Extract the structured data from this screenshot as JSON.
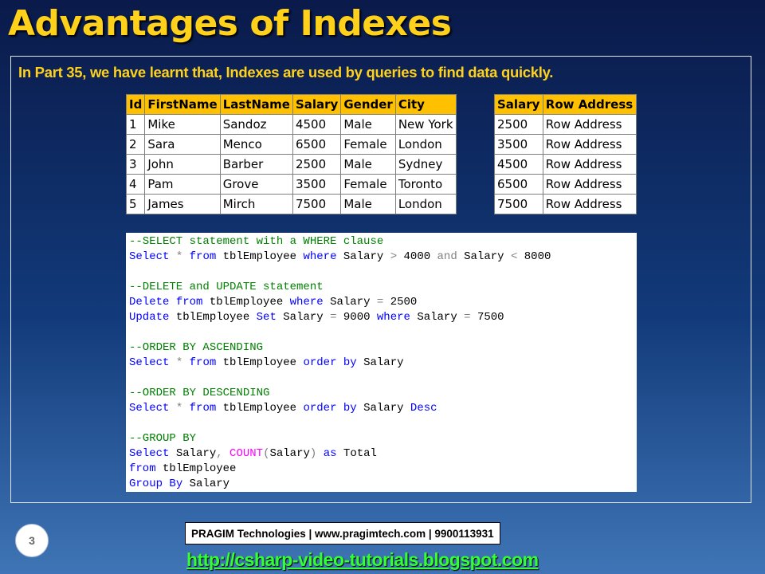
{
  "slide": {
    "title": "Advantages of Indexes",
    "intro": "In Part 35, we have learnt that, Indexes are used by queries to find data quickly.",
    "number": "3"
  },
  "employee_table": {
    "headers": [
      "Id",
      "FirstName",
      "LastName",
      "Salary",
      "Gender",
      "City"
    ],
    "rows": [
      [
        "1",
        "Mike",
        "Sandoz",
        "4500",
        "Male",
        "New York"
      ],
      [
        "2",
        "Sara",
        "Menco",
        "6500",
        "Female",
        "London"
      ],
      [
        "3",
        "John",
        "Barber",
        "2500",
        "Male",
        "Sydney"
      ],
      [
        "4",
        "Pam",
        "Grove",
        "3500",
        "Female",
        "Toronto"
      ],
      [
        "5",
        "James",
        "Mirch",
        "7500",
        "Male",
        "London"
      ]
    ]
  },
  "index_table": {
    "headers": [
      "Salary",
      "Row Address"
    ],
    "rows": [
      [
        "2500",
        "Row Address"
      ],
      [
        "3500",
        "Row Address"
      ],
      [
        "4500",
        "Row Address"
      ],
      [
        "6500",
        "Row Address"
      ],
      [
        "7500",
        "Row Address"
      ]
    ]
  },
  "code": {
    "lines": [
      [
        {
          "t": "--SELECT statement with a WHERE clause",
          "c": "cm"
        }
      ],
      [
        {
          "t": "Select",
          "c": "kw"
        },
        {
          "t": " "
        },
        {
          "t": "*",
          "c": "op"
        },
        {
          "t": " "
        },
        {
          "t": "from",
          "c": "kw"
        },
        {
          "t": " tblEmployee "
        },
        {
          "t": "where",
          "c": "kw"
        },
        {
          "t": " Salary "
        },
        {
          "t": ">",
          "c": "op"
        },
        {
          "t": " 4000 "
        },
        {
          "t": "and",
          "c": "op"
        },
        {
          "t": " Salary "
        },
        {
          "t": "<",
          "c": "op"
        },
        {
          "t": " 8000"
        }
      ],
      [],
      [
        {
          "t": "--DELETE and UPDATE statement",
          "c": "cm"
        }
      ],
      [
        {
          "t": "Delete",
          "c": "kw"
        },
        {
          "t": " "
        },
        {
          "t": "from",
          "c": "kw"
        },
        {
          "t": " tblEmployee "
        },
        {
          "t": "where",
          "c": "kw"
        },
        {
          "t": " Salary "
        },
        {
          "t": "=",
          "c": "op"
        },
        {
          "t": " 2500"
        }
      ],
      [
        {
          "t": "Update",
          "c": "kw"
        },
        {
          "t": " tblEmployee "
        },
        {
          "t": "Set",
          "c": "kw"
        },
        {
          "t": " Salary "
        },
        {
          "t": "=",
          "c": "op"
        },
        {
          "t": " 9000 "
        },
        {
          "t": "where",
          "c": "kw"
        },
        {
          "t": " Salary "
        },
        {
          "t": "=",
          "c": "op"
        },
        {
          "t": " 7500"
        }
      ],
      [],
      [
        {
          "t": "--ORDER BY ASCENDING",
          "c": "cm"
        }
      ],
      [
        {
          "t": "Select",
          "c": "kw"
        },
        {
          "t": " "
        },
        {
          "t": "*",
          "c": "op"
        },
        {
          "t": " "
        },
        {
          "t": "from",
          "c": "kw"
        },
        {
          "t": " tblEmployee "
        },
        {
          "t": "order",
          "c": "kw"
        },
        {
          "t": " "
        },
        {
          "t": "by",
          "c": "kw"
        },
        {
          "t": " Salary"
        }
      ],
      [],
      [
        {
          "t": "--ORDER BY DESCENDING",
          "c": "cm"
        }
      ],
      [
        {
          "t": "Select",
          "c": "kw"
        },
        {
          "t": " "
        },
        {
          "t": "*",
          "c": "op"
        },
        {
          "t": " "
        },
        {
          "t": "from",
          "c": "kw"
        },
        {
          "t": " tblEmployee "
        },
        {
          "t": "order",
          "c": "kw"
        },
        {
          "t": " "
        },
        {
          "t": "by",
          "c": "kw"
        },
        {
          "t": " Salary "
        },
        {
          "t": "Desc",
          "c": "kw"
        }
      ],
      [],
      [
        {
          "t": "--GROUP BY",
          "c": "cm"
        }
      ],
      [
        {
          "t": "Select",
          "c": "kw"
        },
        {
          "t": " Salary"
        },
        {
          "t": ",",
          "c": "op"
        },
        {
          "t": " "
        },
        {
          "t": "COUNT",
          "c": "fn"
        },
        {
          "t": "(",
          "c": "op"
        },
        {
          "t": "Salary"
        },
        {
          "t": ")",
          "c": "op"
        },
        {
          "t": " "
        },
        {
          "t": "as",
          "c": "kw"
        },
        {
          "t": " Total"
        }
      ],
      [
        {
          "t": "from",
          "c": "kw"
        },
        {
          "t": " tblEmployee"
        }
      ],
      [
        {
          "t": "Group",
          "c": "kw"
        },
        {
          "t": " "
        },
        {
          "t": "By",
          "c": "kw"
        },
        {
          "t": " Salary"
        }
      ]
    ]
  },
  "footer": {
    "company": "PRAGIM Technologies | www.pragimtech.com | 9900113931",
    "link": "http://csharp-video-tutorials.blogspot.com"
  },
  "colors": {
    "title": "#ffd11a",
    "header_fill": "#ffc000",
    "sql_keyword": "#0000ff",
    "sql_comment": "#008000",
    "sql_operator": "#808080",
    "sql_function": "#ff00ff",
    "link": "#33ff33"
  }
}
